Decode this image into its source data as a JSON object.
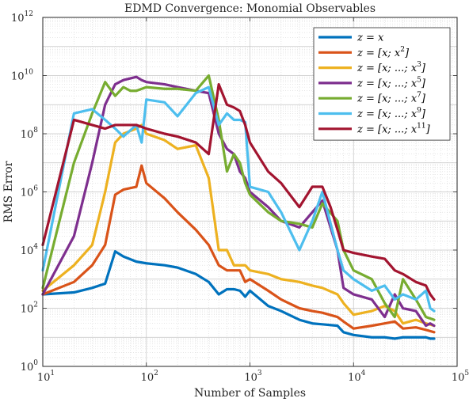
{
  "chart_data": {
    "type": "line",
    "title": "EDMD Convergence: Monomial Observables",
    "xlabel": "Number of Samples",
    "ylabel": "RMS Error",
    "xscale": "log",
    "yscale": "log",
    "xlim": [
      10,
      100000
    ],
    "ylim": [
      1,
      1000000000000
    ],
    "grid": true,
    "minor_grid": true,
    "legend_position": "top-right",
    "x_ticks": [
      {
        "value": 10,
        "base": "10",
        "exp": "1"
      },
      {
        "value": 100,
        "base": "10",
        "exp": "2"
      },
      {
        "value": 1000,
        "base": "10",
        "exp": "3"
      },
      {
        "value": 10000,
        "base": "10",
        "exp": "4"
      },
      {
        "value": 100000,
        "base": "10",
        "exp": "5"
      }
    ],
    "y_ticks": [
      {
        "value": 1,
        "base": "10",
        "exp": "0"
      },
      {
        "value": 100,
        "base": "10",
        "exp": "2"
      },
      {
        "value": 10000,
        "base": "10",
        "exp": "4"
      },
      {
        "value": 1000000,
        "base": "10",
        "exp": "6"
      },
      {
        "value": 100000000,
        "base": "10",
        "exp": "8"
      },
      {
        "value": 10000000000,
        "base": "10",
        "exp": "10"
      },
      {
        "value": 1000000000000,
        "base": "10",
        "exp": "12"
      }
    ],
    "series": [
      {
        "name": "z = x",
        "label_parts": [
          [
            "z = x",
            ""
          ]
        ],
        "color": "#0072BD",
        "x": [
          10,
          20,
          30,
          40,
          50,
          60,
          80,
          100,
          150,
          200,
          300,
          400,
          500,
          600,
          700,
          800,
          900,
          1000,
          1500,
          2000,
          3000,
          4000,
          5000,
          7000,
          8000,
          10000,
          15000,
          20000,
          25000,
          30000,
          40000,
          50000,
          55000,
          60000
        ],
        "y": [
          300,
          350,
          500,
          700,
          9000,
          6000,
          4000,
          3500,
          3000,
          2500,
          1500,
          800,
          300,
          450,
          450,
          400,
          250,
          400,
          120,
          80,
          40,
          30,
          28,
          25,
          15,
          12,
          10,
          10,
          9,
          10,
          10,
          10,
          9,
          9
        ]
      },
      {
        "name": "z = [x; x^2]",
        "label_parts": [
          [
            "z = [x; x",
            ""
          ],
          [
            "2",
            "sup"
          ],
          [
            "]",
            ""
          ]
        ],
        "color": "#D95319",
        "x": [
          10,
          20,
          30,
          40,
          50,
          60,
          80,
          90,
          100,
          150,
          200,
          300,
          400,
          500,
          600,
          700,
          800,
          900,
          1000,
          1500,
          2000,
          3000,
          4000,
          5000,
          7000,
          8000,
          10000,
          15000,
          20000,
          25000,
          30000,
          40000,
          50000,
          60000
        ],
        "y": [
          300,
          800,
          3000,
          15000,
          800000,
          1200000,
          1500000,
          8000000,
          2000000,
          600000,
          200000,
          50000,
          15000,
          3000,
          2000,
          2000,
          2000,
          800,
          1000,
          400,
          200,
          100,
          80,
          70,
          50,
          35,
          20,
          25,
          30,
          35,
          20,
          22,
          18,
          15
        ]
      },
      {
        "name": "z = [x; ...; x^3]",
        "label_parts": [
          [
            "z = [x; ...; x",
            ""
          ],
          [
            "3",
            "sup"
          ],
          [
            "]",
            ""
          ]
        ],
        "color": "#EDB120",
        "x": [
          10,
          20,
          30,
          40,
          50,
          60,
          80,
          90,
          100,
          150,
          200,
          300,
          400,
          500,
          600,
          700,
          800,
          900,
          1000,
          1500,
          2000,
          3000,
          4000,
          5000,
          7000,
          8000,
          10000,
          15000,
          20000,
          25000,
          30000,
          40000,
          50000,
          60000
        ],
        "y": [
          400,
          3000,
          15000,
          1000000,
          50000000,
          100000000,
          150000000,
          200000000,
          100000000,
          60000000,
          30000000,
          40000000,
          3000000,
          10000,
          10000,
          3000,
          3000,
          3000,
          2000,
          1500,
          1000,
          800,
          600,
          500,
          300,
          150,
          60,
          80,
          120,
          80,
          30,
          40,
          30,
          25
        ]
      },
      {
        "name": "z = [x; ...; x^5]",
        "label_parts": [
          [
            "z = [x; ...; x",
            ""
          ],
          [
            "5",
            "sup"
          ],
          [
            "]",
            ""
          ]
        ],
        "color": "#7E2F8E",
        "x": [
          10,
          20,
          30,
          40,
          50,
          60,
          70,
          80,
          90,
          100,
          150,
          200,
          300,
          400,
          500,
          600,
          700,
          800,
          900,
          1000,
          1500,
          2000,
          3000,
          4000,
          5000,
          7000,
          8000,
          10000,
          15000,
          20000,
          25000,
          30000,
          40000,
          50000,
          55000,
          60000
        ],
        "y": [
          300,
          30000,
          10000000,
          1000000000,
          5000000000,
          7000000000,
          8000000000,
          9000000000,
          7000000000,
          6000000000,
          5000000000,
          4000000000,
          3000000000,
          2500000000,
          100000000,
          30000000,
          20000000,
          5000000,
          3000000,
          1000000,
          300000,
          100000,
          60000,
          200000,
          500000,
          10000,
          500,
          300,
          200,
          50,
          300,
          100,
          80,
          25,
          30,
          25
        ]
      },
      {
        "name": "z = [x; ...; x^7]",
        "label_parts": [
          [
            "z = [x; ...; x",
            ""
          ],
          [
            "7",
            "sup"
          ],
          [
            "]",
            ""
          ]
        ],
        "color": "#77AC30",
        "x": [
          10,
          20,
          30,
          40,
          50,
          60,
          70,
          80,
          100,
          150,
          200,
          300,
          400,
          500,
          600,
          700,
          800,
          900,
          1000,
          1500,
          2000,
          3000,
          4000,
          5000,
          7000,
          8000,
          10000,
          15000,
          20000,
          25000,
          30000,
          40000,
          50000,
          60000
        ],
        "y": [
          500,
          10000000,
          500000000,
          6000000000,
          2000000000,
          4000000000,
          3000000000,
          3000000000,
          4000000000,
          3500000000,
          3500000000,
          3000000000,
          10000000000,
          300000000,
          5000000,
          20000000,
          10000000,
          2000000,
          800000,
          200000,
          100000,
          80000,
          60000,
          400000,
          100000,
          10000,
          2000,
          1000,
          150,
          50,
          1000,
          200,
          50,
          40
        ]
      },
      {
        "name": "z = [x; ...; x^9]",
        "label_parts": [
          [
            "z = [x; ...; x",
            ""
          ],
          [
            "9",
            "sup"
          ],
          [
            "]",
            ""
          ]
        ],
        "color": "#4DBEEE",
        "x": [
          10,
          20,
          30,
          40,
          50,
          60,
          80,
          90,
          100,
          150,
          200,
          300,
          400,
          500,
          600,
          700,
          800,
          900,
          1000,
          1500,
          2000,
          3000,
          4000,
          5000,
          7000,
          8000,
          10000,
          15000,
          20000,
          25000,
          30000,
          40000,
          50000,
          55000,
          60000
        ],
        "y": [
          2000,
          500000000,
          700000000,
          300000000,
          150000000,
          80000000,
          200000000,
          50000000,
          1500000000,
          1200000000,
          400000000,
          2500000000,
          4000000000,
          200000000,
          500000000,
          300000000,
          300000000,
          250000000,
          1500000,
          1000000,
          200000,
          10000,
          100000,
          1000000,
          10000,
          2000,
          1000,
          400,
          600,
          200,
          300,
          200,
          400,
          100,
          80
        ]
      },
      {
        "name": "z = [x; ...; x^11]",
        "label_parts": [
          [
            "z = [x; ...; x",
            ""
          ],
          [
            "11",
            "sup"
          ],
          [
            "]",
            ""
          ]
        ],
        "color": "#A2142F",
        "x": [
          10,
          20,
          30,
          40,
          50,
          60,
          80,
          100,
          150,
          200,
          300,
          400,
          500,
          600,
          700,
          800,
          900,
          1000,
          1500,
          2000,
          3000,
          4000,
          5000,
          6000,
          7000,
          8000,
          10000,
          15000,
          20000,
          25000,
          30000,
          40000,
          50000,
          55000,
          60000
        ],
        "y": [
          15000,
          300000000,
          200000000,
          150000000,
          200000000,
          200000000,
          200000000,
          150000000,
          100000000,
          80000000,
          50000000,
          20000000,
          5000000000,
          1000000000,
          800000000,
          600000000,
          200000000,
          50000000,
          5000000,
          2000000,
          300000,
          1500000,
          1500000,
          300000,
          50000,
          10000,
          8000,
          6000,
          5000,
          2000,
          1500,
          800,
          600,
          300,
          200
        ]
      }
    ]
  }
}
